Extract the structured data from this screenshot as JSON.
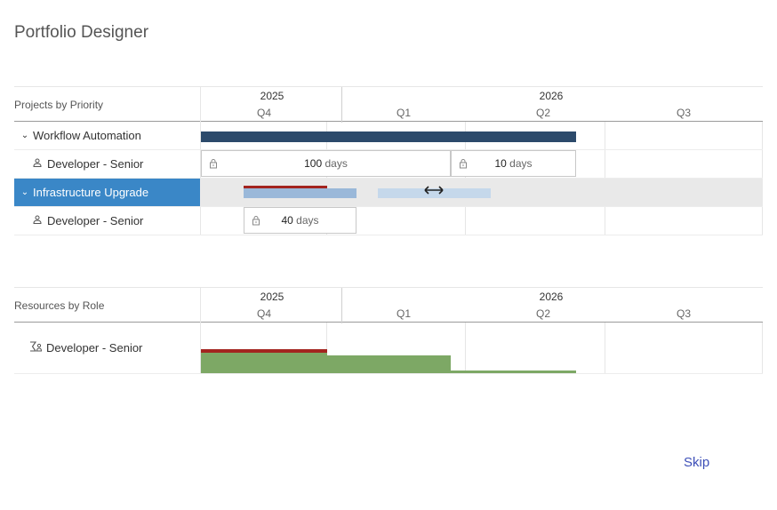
{
  "title": "Portfolio Designer",
  "timeline": {
    "years": [
      "2025",
      "2026"
    ],
    "quarters": [
      "Q4",
      "Q1",
      "Q2",
      "Q3"
    ]
  },
  "projects_grid": {
    "header_label": "Projects by Priority",
    "rows": [
      {
        "label": "Workflow Automation",
        "type": "project",
        "expanded": true
      },
      {
        "label": "Developer - Senior",
        "type": "resource",
        "allocations": [
          {
            "value": "100",
            "unit": "days"
          },
          {
            "value": "10",
            "unit": "days"
          }
        ]
      },
      {
        "label": "Infrastructure Upgrade",
        "type": "project",
        "expanded": true,
        "selected": true
      },
      {
        "label": "Developer - Senior",
        "type": "resource",
        "allocations": [
          {
            "value": "40",
            "unit": "days"
          }
        ]
      }
    ]
  },
  "resources_grid": {
    "header_label": "Resources by Role",
    "rows": [
      {
        "label": "Developer - Senior",
        "icon": "role-sum-icon"
      }
    ]
  },
  "colors": {
    "project_bar": "#2c4a6b",
    "selected_row": "#3a87c7",
    "over_capacity": "#a3241f",
    "demand_bar": "#7da865",
    "pending_bar": "#a7c2de"
  },
  "skip_label": "Skip"
}
